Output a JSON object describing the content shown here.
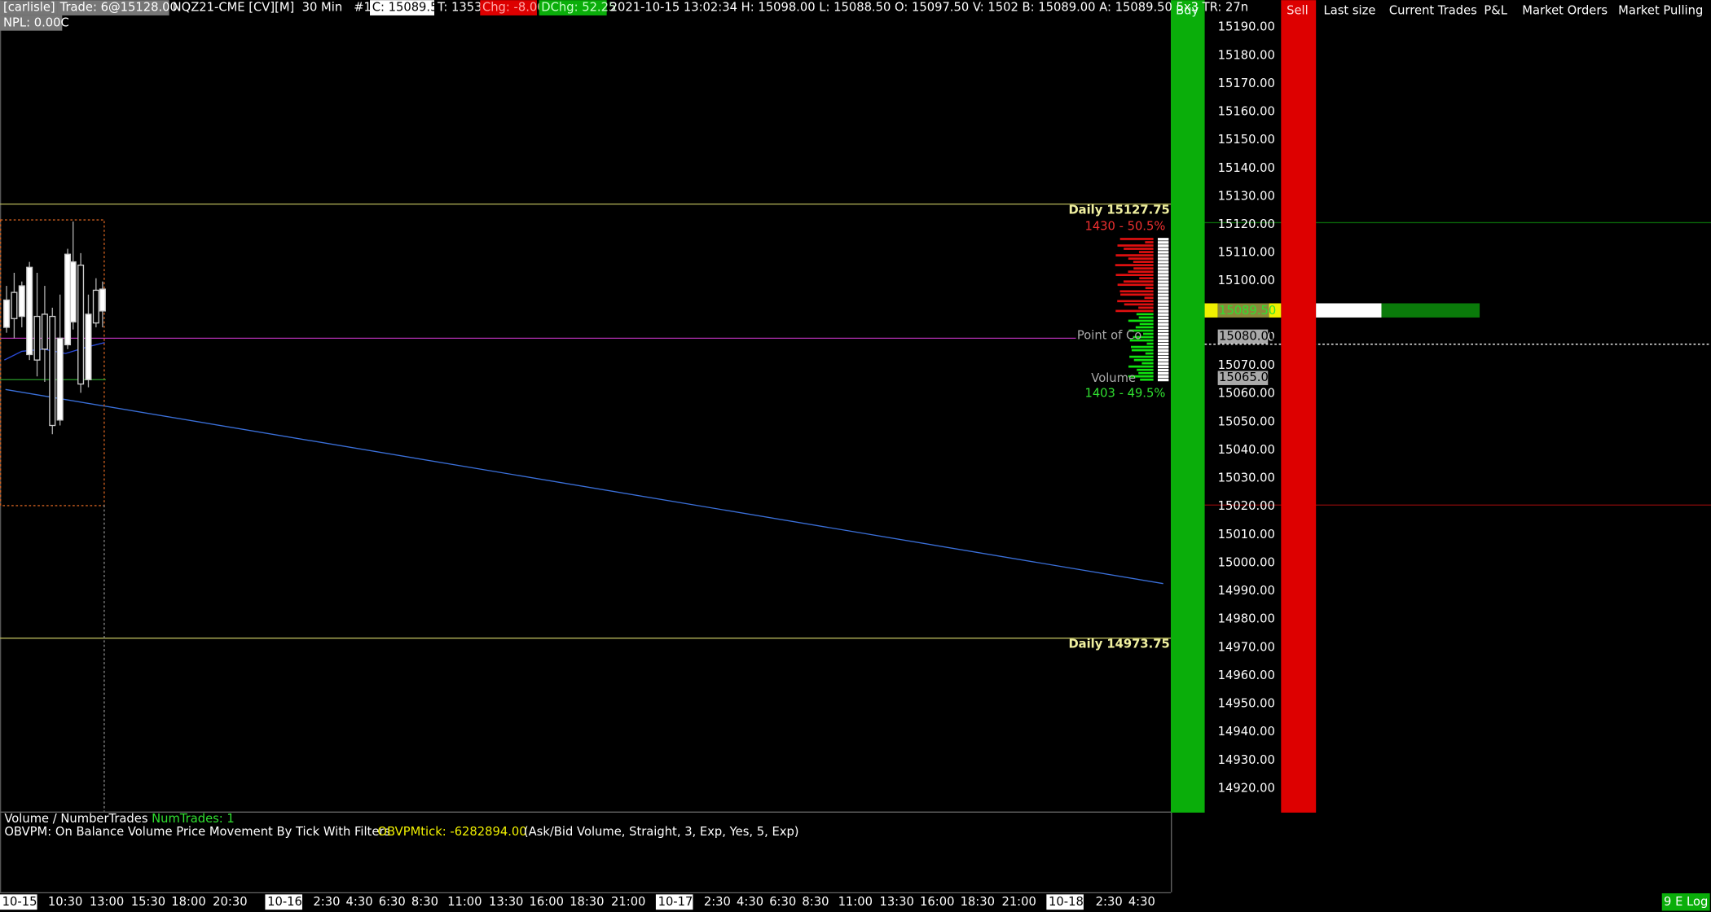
{
  "header": {
    "account": "[carlisle]",
    "trade": "Trade: 6@15128.00",
    "symbol": "NQZ21-CME [CV][M]  30 Min   #10",
    "close": "C: 15089.50",
    "ticks": "T: 1353",
    "change": "Chg: -8.00",
    "daily_change": "DChg: 52.25",
    "stats": "2021-10-15 13:02:34 H: 15098.00 L: 15088.50 O: 15097.50 V: 1502 B: 15089.00 A: 15089.50 5x3 TR: 27n",
    "npl": "NPL: 0.00C"
  },
  "dom_header": [
    "Buy",
    "Sell",
    "Last size",
    "Current Trades",
    "P&L",
    "Market Orders",
    "Market Pulling"
  ],
  "price_axis": [
    "15190.00",
    "15180.00",
    "15170.00",
    "15160.00",
    "15150.00",
    "15140.00",
    "15130.00",
    "15120.00",
    "15110.00",
    "15100.00",
    "15090.00",
    "15080.00",
    "15070.00",
    "15060.00",
    "15050.00",
    "15040.00",
    "15030.00",
    "15020.00",
    "15010.00",
    "15000.00",
    "14990.00",
    "14980.00",
    "14970.00",
    "14960.00",
    "14950.00",
    "14940.00",
    "14930.00",
    "14920.00"
  ],
  "price_markers": {
    "last": "15089.50",
    "marker_a": "15080.00",
    "marker_b": "15065.00"
  },
  "annotations": {
    "daily_high": "Daily  15127.75",
    "upper_volume": "1430 - 50.5%",
    "poc": "Point of Co",
    "volume": "Volume",
    "lower_volume": "1403 - 49.5%",
    "daily_low": "Daily  14973.75"
  },
  "studies": {
    "volume_name": "Volume  / NumberTrades",
    "volume_value": "NumTrades: 1",
    "obvpm_name": "OBVPM: On Balance Volume Price Movement By Tick With Filters",
    "obvpm_value": "OBVPMtick: -6282894.00",
    "obvpm_params": "(Ask/Bid Volume, Straight, 3, Exp, Yes, 5, Exp)"
  },
  "time_axis": [
    "10-15",
    "10:30",
    "13:00",
    "15:30",
    "18:00",
    "20:30",
    "10-16",
    "2:30",
    "4:30",
    "6:30",
    "8:30",
    "11:00",
    "13:30",
    "16:00",
    "18:30",
    "21:00",
    "10-17",
    "2:30",
    "4:30",
    "6:30",
    "8:30",
    "11:00",
    "13:30",
    "16:00",
    "18:30",
    "21:00",
    "10-18",
    "2:30",
    "4:30"
  ],
  "status": "9 E Log"
}
